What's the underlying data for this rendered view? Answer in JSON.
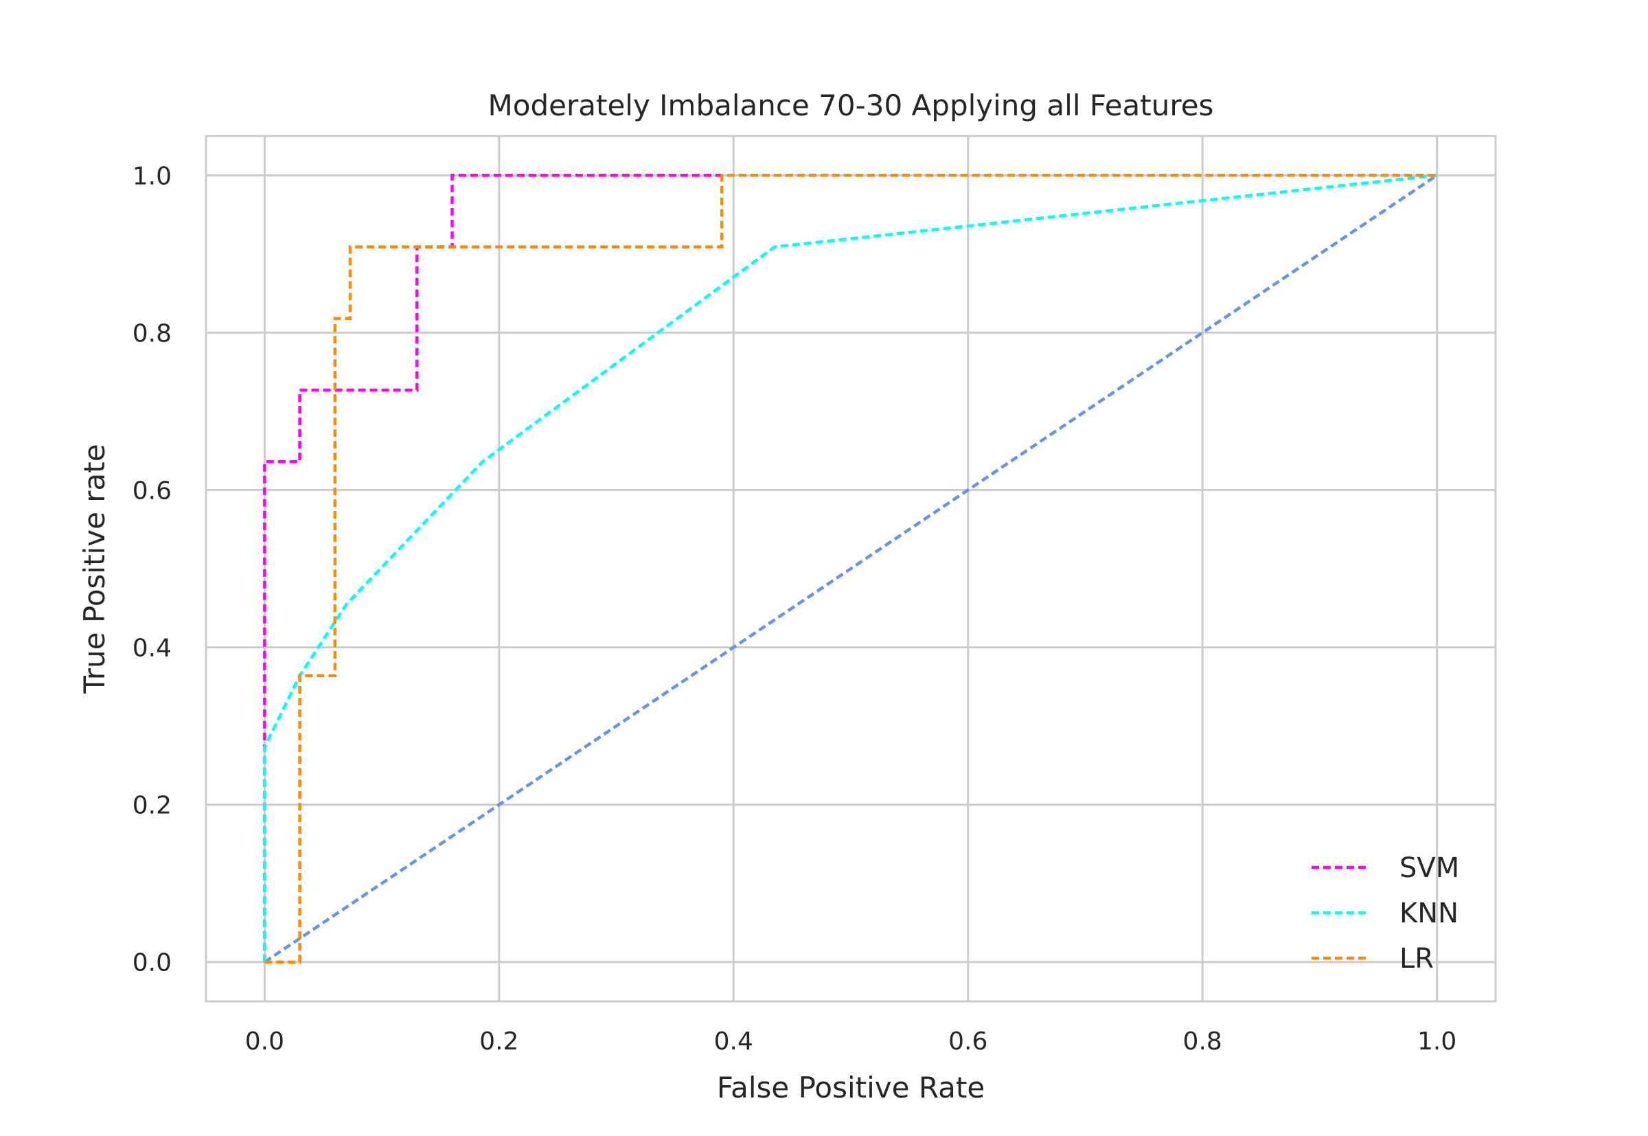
{
  "chart_data": {
    "type": "line",
    "title": "Moderately Imbalance 70-30 Applying all Features",
    "xlabel": "False Positive Rate",
    "ylabel": "True Positive rate",
    "xlim": [
      -0.05,
      1.05
    ],
    "ylim": [
      -0.05,
      1.05
    ],
    "xticks": [
      0.0,
      0.2,
      0.4,
      0.6,
      0.8,
      1.0
    ],
    "xtick_labels": [
      "0.0",
      "0.2",
      "0.4",
      "0.6",
      "0.8",
      "1.0"
    ],
    "yticks": [
      0.0,
      0.2,
      0.4,
      0.6,
      0.8,
      1.0
    ],
    "ytick_labels": [
      "0.0",
      "0.2",
      "0.4",
      "0.6",
      "0.8",
      "1.0"
    ],
    "grid": true,
    "legend_position": "lower-right",
    "series": [
      {
        "name": "SVM",
        "color": "#ff00ff",
        "dash": "dashed",
        "x": [
          0.0,
          0.0,
          0.0,
          0.03,
          0.03,
          0.13,
          0.13,
          0.16,
          0.16,
          1.0
        ],
        "y": [
          0.0,
          0.273,
          0.636,
          0.636,
          0.727,
          0.727,
          0.909,
          0.909,
          1.0,
          1.0
        ]
      },
      {
        "name": "KNN",
        "color": "#00ffff",
        "dash": "dashed",
        "x": [
          0.0,
          0.0,
          0.03,
          0.07,
          0.186,
          0.435,
          1.0
        ],
        "y": [
          0.0,
          0.273,
          0.364,
          0.455,
          0.636,
          0.909,
          1.0
        ]
      },
      {
        "name": "LR",
        "color": "#ff8c00",
        "dash": "dashed",
        "x": [
          0.0,
          0.03,
          0.03,
          0.06,
          0.06,
          0.073,
          0.073,
          0.39,
          0.39,
          1.0
        ],
        "y": [
          0.0,
          0.0,
          0.364,
          0.364,
          0.818,
          0.818,
          0.909,
          0.909,
          1.0,
          1.0
        ]
      }
    ],
    "reference_line": {
      "color": "#6495ed",
      "dash": "dashed",
      "x": [
        0.0,
        1.0
      ],
      "y": [
        0.0,
        1.0
      ]
    }
  }
}
